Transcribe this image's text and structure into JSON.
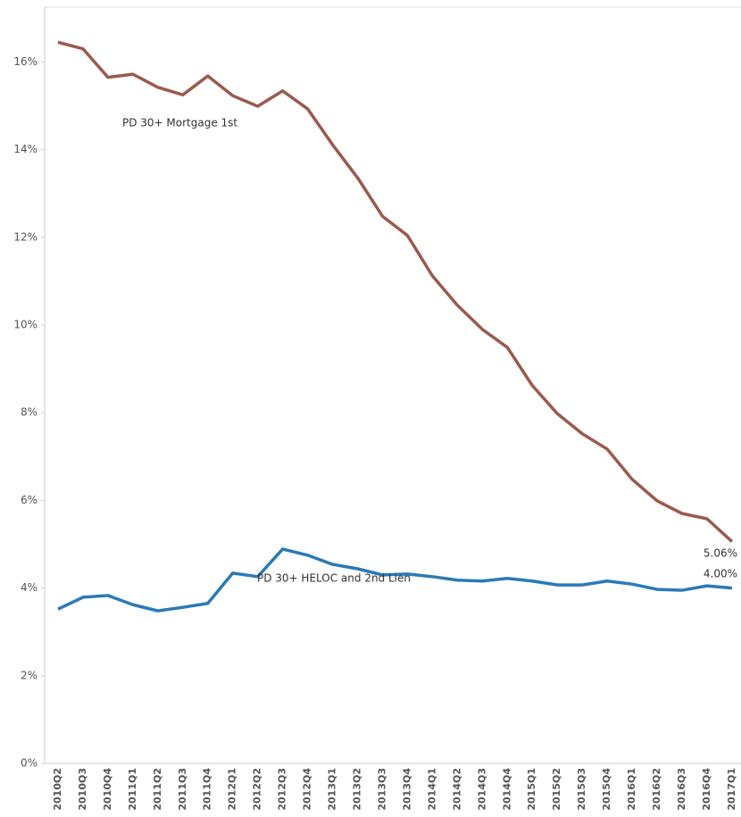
{
  "chart_data": {
    "type": "line",
    "categories": [
      "2010Q2",
      "2010Q3",
      "2010Q4",
      "2011Q1",
      "2011Q2",
      "2011Q3",
      "2011Q4",
      "2012Q1",
      "2012Q2",
      "2012Q3",
      "2012Q4",
      "2013Q1",
      "2013Q2",
      "2013Q3",
      "2013Q4",
      "2014Q1",
      "2014Q2",
      "2014Q3",
      "2014Q4",
      "2015Q1",
      "2015Q2",
      "2015Q3",
      "2015Q4",
      "2016Q1",
      "2016Q2",
      "2016Q3",
      "2016Q4",
      "2017Q1"
    ],
    "series": [
      {
        "name": "PD 30+ Mortgage 1st",
        "color": "#9b5a4c",
        "values": [
          16.45,
          16.3,
          15.65,
          15.72,
          15.42,
          15.25,
          15.68,
          15.23,
          14.99,
          15.34,
          14.93,
          14.11,
          13.36,
          12.48,
          12.04,
          11.12,
          10.45,
          9.9,
          9.49,
          8.62,
          7.98,
          7.52,
          7.17,
          6.48,
          5.99,
          5.7,
          5.58,
          5.06
        ],
        "value_labels": [
          null,
          null,
          null,
          null,
          null,
          null,
          null,
          null,
          null,
          null,
          null,
          null,
          null,
          null,
          null,
          null,
          null,
          null,
          null,
          null,
          null,
          null,
          null,
          null,
          null,
          null,
          null,
          "5.06%"
        ]
      },
      {
        "name": "PD 30+ HELOC and 2nd Lien",
        "color": "#2a7ab8",
        "values": [
          3.52,
          3.79,
          3.83,
          3.62,
          3.48,
          3.56,
          3.65,
          4.34,
          4.26,
          4.89,
          4.75,
          4.54,
          4.44,
          4.3,
          4.32,
          4.26,
          4.18,
          4.16,
          4.22,
          4.16,
          4.07,
          4.07,
          4.16,
          4.09,
          3.97,
          3.95,
          4.05,
          4.0
        ],
        "value_labels": [
          null,
          null,
          null,
          null,
          null,
          null,
          null,
          null,
          null,
          null,
          null,
          null,
          null,
          null,
          null,
          null,
          null,
          null,
          null,
          null,
          null,
          null,
          null,
          null,
          null,
          null,
          null,
          "4.00%"
        ]
      }
    ],
    "ylim": [
      0,
      17.25
    ],
    "yticks": [
      {
        "value": 0,
        "label": "0%"
      },
      {
        "value": 2,
        "label": "2%"
      },
      {
        "value": 4,
        "label": "4%"
      },
      {
        "value": 6,
        "label": "6%"
      },
      {
        "value": 8,
        "label": "8%"
      },
      {
        "value": 10,
        "label": "10%"
      },
      {
        "value": 12,
        "label": "12%"
      },
      {
        "value": 14,
        "label": "14%"
      },
      {
        "value": 16,
        "label": "16%"
      }
    ],
    "grid": false
  }
}
